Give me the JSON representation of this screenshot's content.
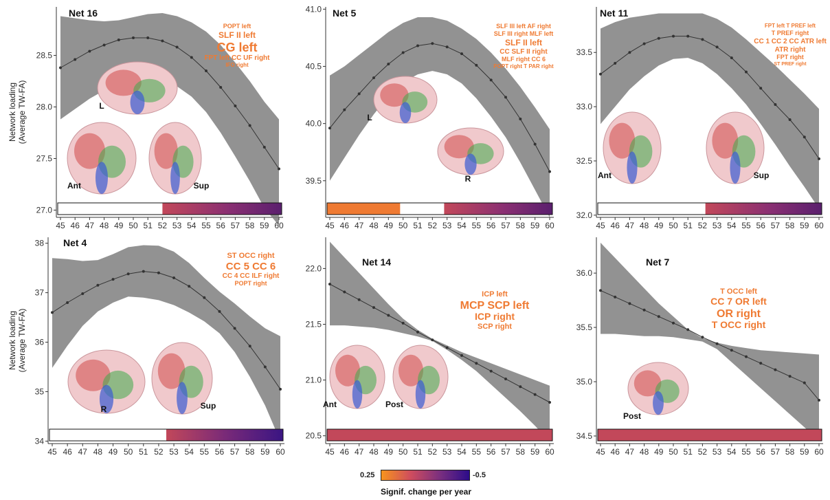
{
  "ylabel_line1": "Network loading",
  "ylabel_line2": "(Average TW-FA)",
  "legend": {
    "min_label": "0.25",
    "max_label": "-0.5",
    "title": "Signif. change per year",
    "colors": [
      "#f7941d",
      "#cf4d5e",
      "#7a2f7f",
      "#2c0c8a"
    ]
  },
  "chart_data": [
    {
      "type": "line",
      "title": "Net 16",
      "x": [
        45,
        46,
        47,
        48,
        49,
        50,
        51,
        52,
        53,
        54,
        55,
        56,
        57,
        58,
        59,
        60
      ],
      "y": [
        28.38,
        28.46,
        28.54,
        28.6,
        28.65,
        28.67,
        28.67,
        28.64,
        28.58,
        28.48,
        28.35,
        28.19,
        28.01,
        27.82,
        27.61,
        27.4
      ],
      "ci_upper": [
        28.88,
        28.86,
        28.84,
        28.83,
        28.84,
        28.87,
        28.9,
        28.91,
        28.88,
        28.82,
        28.73,
        28.6,
        28.43,
        28.25,
        28.05,
        27.88
      ],
      "ci_lower": [
        27.88,
        27.98,
        28.08,
        28.16,
        28.23,
        28.28,
        28.3,
        28.26,
        28.2,
        28.1,
        27.95,
        27.75,
        27.52,
        27.28,
        27.02,
        26.85
      ],
      "ylim": [
        26.93,
        28.97
      ],
      "yticks": [
        "27.0",
        "27.5",
        "28.0",
        "28.5"
      ],
      "bar": [
        {
          "from": 45,
          "to": 52,
          "color": "#ffffff"
        },
        {
          "from": 52,
          "to": 60,
          "color": "gradient-red-purple"
        }
      ],
      "tracts": [
        {
          "text": "POPT left",
          "size": 9
        },
        {
          "text": "SLF II left",
          "size": 12
        },
        {
          "text": "CG left",
          "size": 18
        },
        {
          "text": "FPT left CC UF right",
          "size": 10
        },
        {
          "text": "IFO right",
          "size": 8
        }
      ],
      "views": [
        "L",
        "Ant",
        "Sup"
      ]
    },
    {
      "type": "line",
      "title": "Net 5",
      "x": [
        45,
        46,
        47,
        48,
        49,
        50,
        51,
        52,
        53,
        54,
        55,
        56,
        57,
        58,
        59,
        60
      ],
      "y": [
        39.96,
        40.12,
        40.26,
        40.4,
        40.52,
        40.62,
        40.68,
        40.7,
        40.67,
        40.61,
        40.51,
        40.38,
        40.23,
        40.04,
        39.82,
        39.58
      ],
      "ci_upper": [
        40.42,
        40.5,
        40.6,
        40.7,
        40.8,
        40.88,
        40.93,
        40.93,
        40.9,
        40.83,
        40.74,
        40.62,
        40.48,
        40.32,
        40.14,
        39.95
      ],
      "ci_lower": [
        39.5,
        39.7,
        39.9,
        40.08,
        40.24,
        40.36,
        40.43,
        40.46,
        40.43,
        40.35,
        40.22,
        40.06,
        39.88,
        39.66,
        39.42,
        39.18
      ],
      "ylim": [
        39.18,
        41.02
      ],
      "yticks": [
        "39.5",
        "40.0",
        "40.5",
        "41.0"
      ],
      "bar": [
        {
          "from": 45,
          "to": 49.8,
          "color": "#ef7a32"
        },
        {
          "from": 49.8,
          "to": 52.8,
          "color": "#ffffff"
        },
        {
          "from": 52.8,
          "to": 60,
          "color": "gradient-red-purple"
        }
      ],
      "tracts": [
        {
          "text": "SLF III left AF right",
          "size": 9
        },
        {
          "text": "SLF III right MLF left",
          "size": 9
        },
        {
          "text": "SLF II left",
          "size": 12
        },
        {
          "text": "CC SLF II right",
          "size": 10
        },
        {
          "text": "MLF right CC 6",
          "size": 9
        },
        {
          "text": "POPT right T PAR right",
          "size": 8
        }
      ],
      "views": [
        "L",
        "R"
      ]
    },
    {
      "type": "line",
      "title": "Net 11",
      "x": [
        45,
        46,
        47,
        48,
        49,
        50,
        51,
        52,
        53,
        54,
        55,
        56,
        57,
        58,
        59,
        60
      ],
      "y": [
        33.3,
        33.4,
        33.5,
        33.58,
        33.63,
        33.65,
        33.65,
        33.62,
        33.55,
        33.45,
        33.32,
        33.17,
        33.02,
        32.88,
        32.72,
        32.52
      ],
      "ci_upper": [
        33.72,
        33.78,
        33.82,
        33.84,
        33.86,
        33.86,
        33.86,
        33.86,
        33.81,
        33.73,
        33.62,
        33.5,
        33.38,
        33.25,
        33.12,
        32.98
      ],
      "ci_lower": [
        32.84,
        33.0,
        33.16,
        33.28,
        33.38,
        33.44,
        33.45,
        33.4,
        33.3,
        33.17,
        33.02,
        32.84,
        32.65,
        32.45,
        32.26,
        32.06
      ],
      "ylim": [
        31.98,
        33.92
      ],
      "yticks": [
        "32.0",
        "32.5",
        "33.0",
        "33.5"
      ],
      "bar": [
        {
          "from": 45,
          "to": 52.2,
          "color": "#ffffff"
        },
        {
          "from": 52.2,
          "to": 60,
          "color": "gradient-red-purple"
        }
      ],
      "tracts": [
        {
          "text": "FPT left T PREF left",
          "size": 8
        },
        {
          "text": "T PREF right",
          "size": 9
        },
        {
          "text": "CC 1 CC 2 CC ATR left",
          "size": 10
        },
        {
          "text": "ATR right",
          "size": 10
        },
        {
          "text": "FPT right",
          "size": 9
        },
        {
          "text": "ST PREF right",
          "size": 7
        }
      ],
      "views": [
        "Ant",
        "Sup"
      ]
    },
    {
      "type": "line",
      "title": "Net 4",
      "x": [
        45,
        46,
        47,
        48,
        49,
        50,
        51,
        52,
        53,
        54,
        55,
        56,
        57,
        58,
        59,
        60
      ],
      "y": [
        36.6,
        36.8,
        36.98,
        37.15,
        37.27,
        37.38,
        37.43,
        37.4,
        37.3,
        37.13,
        36.9,
        36.62,
        36.28,
        35.92,
        35.5,
        35.05
      ],
      "ci_upper": [
        37.7,
        37.68,
        37.64,
        37.66,
        37.78,
        37.92,
        37.96,
        37.95,
        37.83,
        37.6,
        37.3,
        37.02,
        36.78,
        36.52,
        36.28,
        36.12
      ],
      "ci_lower": [
        35.48,
        35.93,
        36.33,
        36.62,
        36.8,
        36.92,
        36.9,
        36.85,
        36.75,
        36.6,
        36.42,
        36.18,
        35.8,
        35.3,
        34.72,
        34.0
      ],
      "ylim": [
        33.95,
        38.12
      ],
      "yticks": [
        "34",
        "35",
        "36",
        "37",
        "38"
      ],
      "bar": [
        {
          "from": 45,
          "to": 52.5,
          "color": "#ffffff"
        },
        {
          "from": 52.5,
          "to": 60,
          "color": "gradient-red-purple-deep"
        }
      ],
      "tracts": [
        {
          "text": "ST OCC right",
          "size": 11
        },
        {
          "text": "CC 5 CC 6",
          "size": 15
        },
        {
          "text": "CC 4 CC ILF right",
          "size": 10
        },
        {
          "text": "POPT right",
          "size": 9
        }
      ],
      "views": [
        "R",
        "Sup"
      ]
    },
    {
      "type": "line",
      "title": "Net 14",
      "x": [
        45,
        46,
        47,
        48,
        49,
        50,
        51,
        52,
        53,
        54,
        55,
        56,
        57,
        58,
        59,
        60
      ],
      "y": [
        21.86,
        21.79,
        21.72,
        21.65,
        21.58,
        21.51,
        21.43,
        21.36,
        21.29,
        21.22,
        21.15,
        21.08,
        21.01,
        20.94,
        20.87,
        20.8
      ],
      "ci_upper": [
        22.24,
        22.1,
        21.96,
        21.82,
        21.68,
        21.55,
        21.45,
        21.37,
        21.31,
        21.25,
        21.2,
        21.15,
        21.1,
        21.05,
        21.0,
        20.95
      ],
      "ci_lower": [
        21.49,
        21.49,
        21.48,
        21.47,
        21.45,
        21.42,
        21.39,
        21.35,
        21.27,
        21.18,
        21.08,
        20.96,
        20.84,
        20.72,
        20.59,
        20.45
      ],
      "ylim": [
        20.43,
        22.28
      ],
      "yticks": [
        "20.5",
        "21.0",
        "21.5",
        "22.0"
      ],
      "bar": [
        {
          "from": 45,
          "to": 60,
          "color": "#c2485a"
        }
      ],
      "tracts": [
        {
          "text": "ICP left",
          "size": 11
        },
        {
          "text": "MCP SCP left",
          "size": 16
        },
        {
          "text": "ICP right",
          "size": 14
        },
        {
          "text": "SCP right",
          "size": 11
        }
      ],
      "views": [
        "Ant",
        "Post"
      ]
    },
    {
      "type": "line",
      "title": "Net 7",
      "x": [
        45,
        46,
        47,
        48,
        49,
        50,
        51,
        52,
        53,
        54,
        55,
        56,
        57,
        58,
        59,
        60
      ],
      "y": [
        35.84,
        35.78,
        35.72,
        35.66,
        35.6,
        35.54,
        35.48,
        35.41,
        35.35,
        35.29,
        35.23,
        35.17,
        35.11,
        35.05,
        34.99,
        34.83
      ],
      "ci_upper": [
        36.28,
        36.14,
        36.0,
        35.86,
        35.72,
        35.6,
        35.48,
        35.4,
        35.36,
        35.33,
        35.31,
        35.29,
        35.28,
        35.27,
        35.26,
        35.25
      ],
      "ci_lower": [
        35.44,
        35.44,
        35.43,
        35.42,
        35.42,
        35.41,
        35.39,
        35.37,
        35.3,
        35.18,
        35.06,
        34.94,
        34.82,
        34.7,
        34.58,
        34.46
      ],
      "ylim": [
        34.43,
        36.33
      ],
      "yticks": [
        "34.5",
        "35.0",
        "35.5",
        "36.0"
      ],
      "bar": [
        {
          "from": 45,
          "to": 60,
          "color": "#c2485a"
        }
      ],
      "tracts": [
        {
          "text": "T OCC left",
          "size": 11
        },
        {
          "text": "CC 7 OR left",
          "size": 14
        },
        {
          "text": "OR right",
          "size": 16
        },
        {
          "text": "T OCC right",
          "size": 14
        }
      ],
      "views": [
        "Post"
      ]
    }
  ]
}
